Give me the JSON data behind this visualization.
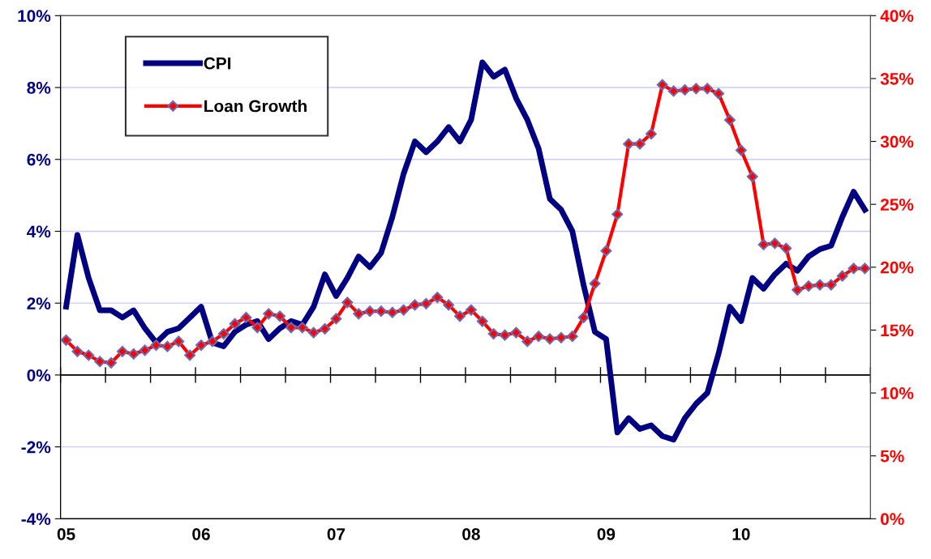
{
  "chart_data": {
    "type": "line",
    "categories": [
      "05",
      null,
      null,
      null,
      null,
      null,
      null,
      null,
      null,
      null,
      null,
      null,
      "06",
      null,
      null,
      null,
      null,
      null,
      null,
      null,
      null,
      null,
      null,
      null,
      "07",
      null,
      null,
      null,
      null,
      null,
      null,
      null,
      null,
      null,
      null,
      null,
      "08",
      null,
      null,
      null,
      null,
      null,
      null,
      null,
      null,
      null,
      null,
      null,
      "09",
      null,
      null,
      null,
      null,
      null,
      null,
      null,
      null,
      null,
      null,
      null,
      "10",
      null,
      null,
      null,
      null,
      null,
      null,
      null,
      null,
      null,
      null,
      null
    ],
    "series": [
      {
        "name": "CPI",
        "color": "#000080",
        "marker": "none",
        "values": [
          1.9,
          3.9,
          2.7,
          1.8,
          1.8,
          1.6,
          1.8,
          1.3,
          0.9,
          1.2,
          1.3,
          1.6,
          1.9,
          0.9,
          0.8,
          1.2,
          1.4,
          1.5,
          1.0,
          1.3,
          1.5,
          1.4,
          1.9,
          2.8,
          2.2,
          2.7,
          3.3,
          3.0,
          3.4,
          4.4,
          5.6,
          6.5,
          6.2,
          6.5,
          6.9,
          6.5,
          7.1,
          8.7,
          8.3,
          8.5,
          7.7,
          7.1,
          6.3,
          4.9,
          4.6,
          4.0,
          2.5,
          1.2,
          1.0,
          -1.6,
          -1.2,
          -1.5,
          -1.4,
          -1.7,
          -1.8,
          -1.2,
          -0.8,
          -0.5,
          0.6,
          1.9,
          1.5,
          2.7,
          2.4,
          2.8,
          3.1,
          2.9,
          3.3,
          3.5,
          3.6,
          4.4,
          5.1,
          4.6
        ]
      },
      {
        "name": "Loan Growth",
        "color": "#ff0000",
        "marker": "diamond",
        "axis": "y2",
        "values": [
          14.2,
          13.3,
          13.0,
          12.5,
          12.4,
          13.3,
          13.1,
          13.4,
          13.8,
          13.7,
          14.1,
          13.0,
          13.8,
          14.1,
          14.7,
          15.5,
          16.0,
          15.2,
          16.3,
          16.1,
          15.2,
          15.2,
          14.8,
          15.1,
          15.9,
          17.2,
          16.3,
          16.5,
          16.5,
          16.4,
          16.6,
          17.0,
          17.1,
          17.6,
          17.0,
          16.1,
          16.6,
          15.7,
          14.7,
          14.6,
          14.8,
          14.1,
          14.5,
          14.3,
          14.4,
          14.5,
          16.0,
          18.7,
          21.3,
          24.2,
          29.8,
          29.8,
          30.6,
          34.5,
          34.0,
          34.1,
          34.2,
          34.2,
          33.8,
          31.7,
          29.3,
          27.2,
          21.8,
          21.9,
          21.5,
          18.2,
          18.5,
          18.6,
          18.6,
          19.3,
          19.9,
          19.9
        ]
      }
    ],
    "ylim": [
      -4,
      10
    ],
    "yticks": [
      {
        "value": -4,
        "label": "-4%"
      },
      {
        "value": -2,
        "label": "-2%"
      },
      {
        "value": 0,
        "label": "0%"
      },
      {
        "value": 2,
        "label": "2%"
      },
      {
        "value": 4,
        "label": "4%"
      },
      {
        "value": 6,
        "label": "6%"
      },
      {
        "value": 8,
        "label": "8%"
      },
      {
        "value": 10,
        "label": "10%"
      }
    ],
    "y2lim": [
      0,
      40
    ],
    "y2ticks": [
      {
        "value": 0,
        "label": "0%"
      },
      {
        "value": 5,
        "label": "5%"
      },
      {
        "value": 10,
        "label": "10%"
      },
      {
        "value": 15,
        "label": "15%"
      },
      {
        "value": 20,
        "label": "20%"
      },
      {
        "value": 25,
        "label": "25%"
      },
      {
        "value": 30,
        "label": "30%"
      },
      {
        "value": 35,
        "label": "35%"
      },
      {
        "value": 40,
        "label": "40%"
      }
    ],
    "ref_lines": [
      {
        "axis": "y",
        "value": 0,
        "color": "#000000"
      }
    ],
    "grid": "y",
    "legend": "top left"
  }
}
